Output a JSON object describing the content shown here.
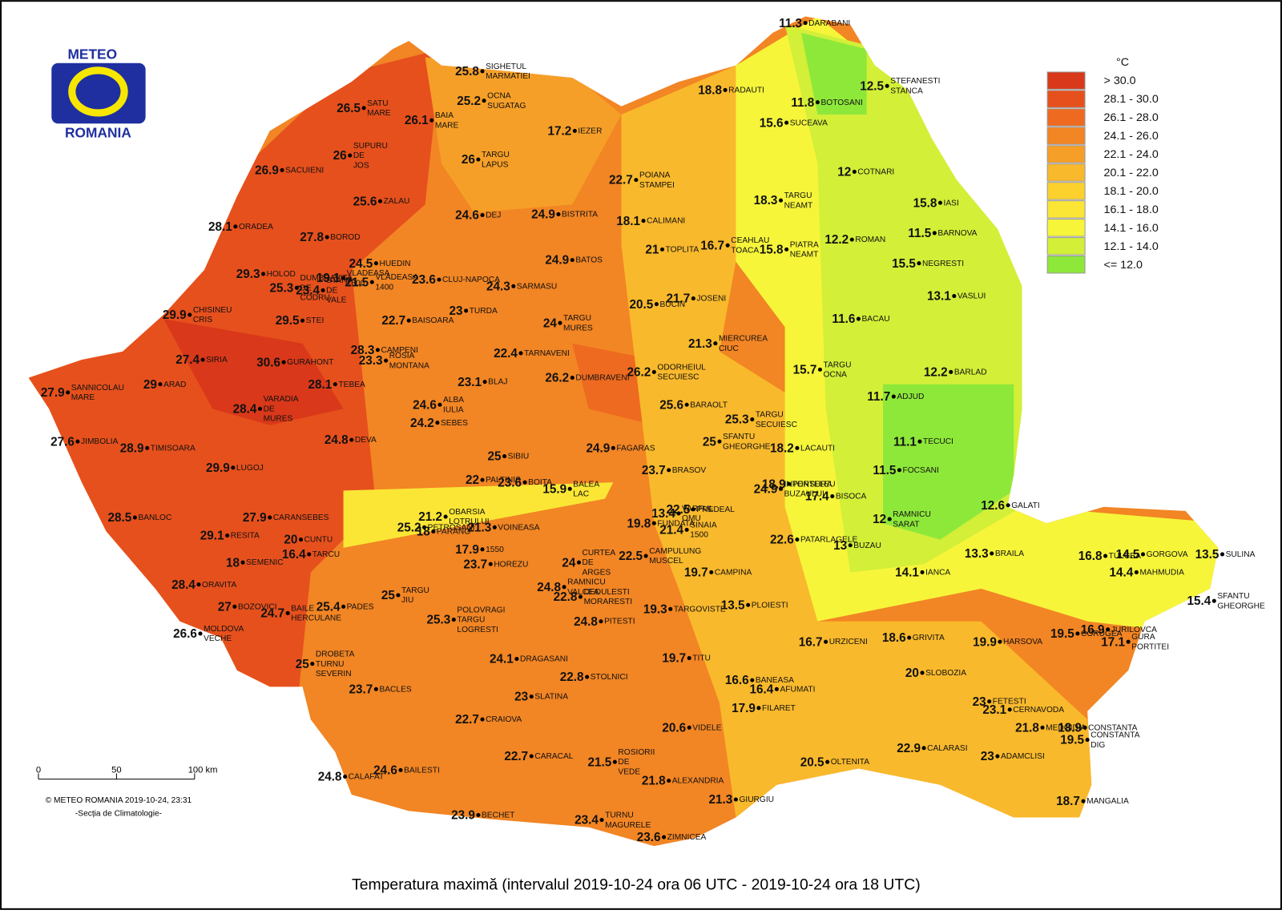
{
  "header": {
    "logo_top": "METEO",
    "logo_bottom": "ROMANIA"
  },
  "legend": {
    "title": "°C",
    "items": [
      {
        "label": "> 30.0",
        "color": "#d9381a"
      },
      {
        "label": "28.1 - 30.0",
        "color": "#e6501d"
      },
      {
        "label": "26.1 - 28.0",
        "color": "#ee6a20"
      },
      {
        "label": "24.1 - 26.0",
        "color": "#f28524"
      },
      {
        "label": "22.1 - 24.0",
        "color": "#f69f28"
      },
      {
        "label": "20.1 - 22.0",
        "color": "#f9b92c"
      },
      {
        "label": "18.1 - 20.0",
        "color": "#fcd12e"
      },
      {
        "label": "16.1 - 18.0",
        "color": "#fbe635"
      },
      {
        "label": "14.1 - 16.0",
        "color": "#f6f53a"
      },
      {
        "label": "12.1 - 14.0",
        "color": "#d3ef38"
      },
      {
        "label": "<= 12.0",
        "color": "#8ee83a"
      }
    ]
  },
  "scale_bar": {
    "labels": [
      "0",
      "50",
      "100 km"
    ]
  },
  "credit": [
    "© METEO ROMANIA 2019-10-24, 23:31",
    "-Secția de Climatologie-"
  ],
  "caption": "Temperatura maximă (intervalul 2019-10-24 ora 06 UTC - 2019-10-24 ora 18 UTC)",
  "stations": [
    {
      "name": [
        "DARABANI"
      ],
      "value": 11.3
    },
    {
      "name": [
        "STEFANESTI",
        "STANCA"
      ],
      "value": 12.5
    },
    {
      "name": [
        "RADAUTI"
      ],
      "value": 18.8
    },
    {
      "name": [
        "BOTOSANI"
      ],
      "value": 11.8
    },
    {
      "name": [
        "SUCEAVA"
      ],
      "value": 15.6
    },
    {
      "name": [
        "COTNARI"
      ],
      "value": 12
    },
    {
      "name": [
        "IASI"
      ],
      "value": 15.8
    },
    {
      "name": [
        "BARNOVA"
      ],
      "value": 11.5
    },
    {
      "name": [
        "ROMAN"
      ],
      "value": 12.2
    },
    {
      "name": [
        "NEGRESTI"
      ],
      "value": 15.5
    },
    {
      "name": [
        "VASLUI"
      ],
      "value": 13.1
    },
    {
      "name": [
        "BACAU"
      ],
      "value": 11.6
    },
    {
      "name": [
        "BARLAD"
      ],
      "value": 12.2
    },
    {
      "name": [
        "ADJUD"
      ],
      "value": 11.7
    },
    {
      "name": [
        "TECUCI"
      ],
      "value": 11.1
    },
    {
      "name": [
        "FOCSANI"
      ],
      "value": 11.5
    },
    {
      "name": [
        "GALATI"
      ],
      "value": 12.6
    },
    {
      "name": [
        "RAMNICU",
        "SARAT"
      ],
      "value": 12
    },
    {
      "name": [
        "BRAILA"
      ],
      "value": 13.3
    },
    {
      "name": [
        "IANCA"
      ],
      "value": 14.1
    },
    {
      "name": [
        "BUZAU"
      ],
      "value": 13
    },
    {
      "name": [
        "TULCEA"
      ],
      "value": 16.8
    },
    {
      "name": [
        "GORGOVA"
      ],
      "value": 14.5
    },
    {
      "name": [
        "MAHMUDIA"
      ],
      "value": 14.4
    },
    {
      "name": [
        "SULINA"
      ],
      "value": 13.5
    },
    {
      "name": [
        "SFANTU",
        "GHEORGHE"
      ],
      "value": 15.4
    },
    {
      "name": [
        "JURILOVCA"
      ],
      "value": 16.9
    },
    {
      "name": [
        "GURA",
        "PORTITEI"
      ],
      "value": 17.1
    },
    {
      "name": [
        "CORUGEA"
      ],
      "value": 19.5
    },
    {
      "name": [
        "HARSOVA"
      ],
      "value": 19.9
    },
    {
      "name": [
        "GRIVITA"
      ],
      "value": 18.6
    },
    {
      "name": [
        "URZICENI"
      ],
      "value": 16.7
    },
    {
      "name": [
        "SLOBOZIA"
      ],
      "value": 20
    },
    {
      "name": [
        "FETESTI"
      ],
      "value": 23
    },
    {
      "name": [
        "CERNAVODA"
      ],
      "value": 23.1
    },
    {
      "name": [
        "MEDGIDIA"
      ],
      "value": 21.8
    },
    {
      "name": [
        "CONSTANTA"
      ],
      "value": 18.9
    },
    {
      "name": [
        "CONSTANTA",
        "DIG"
      ],
      "value": 19.5
    },
    {
      "name": [
        "CALARASI"
      ],
      "value": 22.9
    },
    {
      "name": [
        "ADAMCLISI"
      ],
      "value": 23
    },
    {
      "name": [
        "MANGALIA"
      ],
      "value": 18.7
    },
    {
      "name": [
        "OLTENITA"
      ],
      "value": 20.5
    },
    {
      "name": [
        "GIURGIU"
      ],
      "value": 21.3
    },
    {
      "name": [
        "ZIMNICEA"
      ],
      "value": 23.6
    },
    {
      "name": [
        "TURNU",
        "MAGURELE"
      ],
      "value": 23.4
    },
    {
      "name": [
        "ALEXANDRIA"
      ],
      "value": 21.8
    },
    {
      "name": [
        "ROSIORII",
        "DE",
        "VEDE"
      ],
      "value": 21.5
    },
    {
      "name": [
        "VIDELE"
      ],
      "value": 20.6
    },
    {
      "name": [
        "FILARET"
      ],
      "value": 17.9
    },
    {
      "name": [
        "BANEASA"
      ],
      "value": 16.6
    },
    {
      "name": [
        "AFUMATI"
      ],
      "value": 16.4
    },
    {
      "name": [
        "TITU"
      ],
      "value": 19.7
    },
    {
      "name": [
        "TARGOVISTE"
      ],
      "value": 19.3
    },
    {
      "name": [
        "PLOIESTI"
      ],
      "value": 13.5
    },
    {
      "name": [
        "CAMPINA"
      ],
      "value": 19.7
    },
    {
      "name": [
        "CAMPULUNG",
        "MUSCEL"
      ],
      "value": 22.5
    },
    {
      "name": [
        "SINAIA",
        "1500"
      ],
      "value": 21.4
    },
    {
      "name": [
        "FUNDATA"
      ],
      "value": 19.8
    },
    {
      "name": [
        "VARFUL",
        "OMU"
      ],
      "value": 13.4
    },
    {
      "name": [
        "PREDEAL"
      ],
      "value": 22.5
    },
    {
      "name": [
        "PATARLAGELE"
      ],
      "value": 22.6
    },
    {
      "name": [
        "BISOCA"
      ],
      "value": 17.4
    },
    {
      "name": [
        "PENTELEU"
      ],
      "value": 18.9
    },
    {
      "name": [
        "INTORSURA",
        "BUZAULUI"
      ],
      "value": 24.9
    },
    {
      "name": [
        "BRASOV"
      ],
      "value": 23.7
    },
    {
      "name": [
        "LACAUTI"
      ],
      "value": 18.2
    },
    {
      "name": [
        "TARGU",
        "SECUIESC"
      ],
      "value": 25.3
    },
    {
      "name": [
        "SFANTU",
        "GHEORGHE"
      ],
      "value": 25
    },
    {
      "name": [
        "BARAOLT"
      ],
      "value": 25.6
    },
    {
      "name": [
        "ODORHEIUL",
        "SECUIESC"
      ],
      "value": 26.2
    },
    {
      "name": [
        "MIERCUREA",
        "CIUC"
      ],
      "value": 21.3
    },
    {
      "name": [
        "TARGU",
        "OCNA"
      ],
      "value": 15.7
    },
    {
      "name": [
        "BUCIN"
      ],
      "value": 20.5
    },
    {
      "name": [
        "JOSENI"
      ],
      "value": 21.7
    },
    {
      "name": [
        "TOPLITA"
      ],
      "value": 21
    },
    {
      "name": [
        "CEAHLAU",
        "TOACA"
      ],
      "value": 16.7
    },
    {
      "name": [
        "PIATRA",
        "NEAMT"
      ],
      "value": 15.8
    },
    {
      "name": [
        "TARGU",
        "NEAMT"
      ],
      "value": 18.3
    },
    {
      "name": [
        "CALIMANI"
      ],
      "value": 18.1
    },
    {
      "name": [
        "POIANA",
        "STAMPEI"
      ],
      "value": 22.7
    },
    {
      "name": [
        "IEZER"
      ],
      "value": 17.2
    },
    {
      "name": [
        "BISTRITA"
      ],
      "value": 24.9
    },
    {
      "name": [
        "BATOS"
      ],
      "value": 24.9
    },
    {
      "name": [
        "DEJ"
      ],
      "value": 24.6
    },
    {
      "name": [
        "TARGU",
        "LAPUS"
      ],
      "value": 26
    },
    {
      "name": [
        "OCNA",
        "SUGATAG"
      ],
      "value": 25.2
    },
    {
      "name": [
        "SIGHETUL",
        "MARMATIEI"
      ],
      "value": 25.8
    },
    {
      "name": [
        "BAIA",
        "MARE"
      ],
      "value": 26.1
    },
    {
      "name": [
        "SATU",
        "MARE"
      ],
      "value": 26.5
    },
    {
      "name": [
        "SUPURU",
        "DE",
        "JOS"
      ],
      "value": 26
    },
    {
      "name": [
        "SACUIENI"
      ],
      "value": 26.9
    },
    {
      "name": [
        "ZALAU"
      ],
      "value": 25.6
    },
    {
      "name": [
        "ORADEA"
      ],
      "value": 28.1
    },
    {
      "name": [
        "BOROD"
      ],
      "value": 27.8
    },
    {
      "name": [
        "HUEDIN"
      ],
      "value": 24.5
    },
    {
      "name": [
        "HOLOD"
      ],
      "value": 29.3
    },
    {
      "name": [
        "VLADEASA",
        "1800"
      ],
      "value": 19.1
    },
    {
      "name": [
        "VLADEASA",
        "1400"
      ],
      "value": 21.5
    },
    {
      "name": [
        "CLUJ-NAPOCA"
      ],
      "value": 23.6
    },
    {
      "name": [
        "SARMASU"
      ],
      "value": 24.3
    },
    {
      "name": [
        "DUMBRAVITA",
        "DE",
        "CODRU"
      ],
      "value": 25.3
    },
    {
      "name": [
        "STANA",
        "DE",
        "VALE"
      ],
      "value": 23.4
    },
    {
      "name": [
        "CHISINEU",
        "CRIS"
      ],
      "value": 29.9
    },
    {
      "name": [
        "STEI"
      ],
      "value": 29.5
    },
    {
      "name": [
        "BAISOARA"
      ],
      "value": 22.7
    },
    {
      "name": [
        "TURDA"
      ],
      "value": 23
    },
    {
      "name": [
        "TARGU",
        "MURES"
      ],
      "value": 24
    },
    {
      "name": [
        "CAMPENI"
      ],
      "value": 28.3
    },
    {
      "name": [
        "ROSIA",
        "MONTANA"
      ],
      "value": 23.3
    },
    {
      "name": [
        "TARNAVENI"
      ],
      "value": 22.4
    },
    {
      "name": [
        "SIRIA"
      ],
      "value": 27.4
    },
    {
      "name": [
        "GURAHONT"
      ],
      "value": 30.6
    },
    {
      "name": [
        "SANNICOLAU",
        "MARE"
      ],
      "value": 27.9
    },
    {
      "name": [
        "ARAD"
      ],
      "value": 29
    },
    {
      "name": [
        "TEBEA"
      ],
      "value": 28.1
    },
    {
      "name": [
        "DUMBRAVENI"
      ],
      "value": 26.2
    },
    {
      "name": [
        "BLAJ"
      ],
      "value": 23.1
    },
    {
      "name": [
        "VARADIA",
        "DE",
        "MURES"
      ],
      "value": 28.4
    },
    {
      "name": [
        "ALBA",
        "IULIA"
      ],
      "value": 24.6
    },
    {
      "name": [
        "SEBES"
      ],
      "value": 24.2
    },
    {
      "name": [
        "DEVA"
      ],
      "value": 24.8
    },
    {
      "name": [
        "JIMBOLIA"
      ],
      "value": 27.6
    },
    {
      "name": [
        "TIMISOARA"
      ],
      "value": 28.9
    },
    {
      "name": [
        "LUGOJ"
      ],
      "value": 29.9
    },
    {
      "name": [
        "SIBIU"
      ],
      "value": 25
    },
    {
      "name": [
        "FAGARAS"
      ],
      "value": 24.9
    },
    {
      "name": [
        "PALTINIS"
      ],
      "value": 22
    },
    {
      "name": [
        "BOITA"
      ],
      "value": 23.6
    },
    {
      "name": [
        "BALEA",
        "LAC"
      ],
      "value": 15.9
    },
    {
      "name": [
        "BANLOC"
      ],
      "value": 28.5
    },
    {
      "name": [
        "CARANSEBES"
      ],
      "value": 27.9
    },
    {
      "name": [
        "RESITA"
      ],
      "value": 29.1
    },
    {
      "name": [
        "OBARSIA",
        "LOTRULUI"
      ],
      "value": 21.2
    },
    {
      "name": [
        "PETROSANI"
      ],
      "value": 25.2
    },
    {
      "name": [
        "PARANG"
      ],
      "value": 18
    },
    {
      "name": [
        "VOINEASA"
      ],
      "value": 21.3
    },
    {
      "name": [
        "CUNTU"
      ],
      "value": 20
    },
    {
      "name": [
        "TARCU"
      ],
      "value": 16.4
    },
    {
      "name": [
        "SEMENIC"
      ],
      "value": 18
    },
    {
      "name": [
        "1550"
      ],
      "value": 17.9
    },
    {
      "name": [
        "HOREZU"
      ],
      "value": 23.7
    },
    {
      "name": [
        "CURTEA",
        "DE",
        "ARGES"
      ],
      "value": 24
    },
    {
      "name": [
        "RAMNICU",
        "VALCEA"
      ],
      "value": 24.8
    },
    {
      "name": [
        "DEDULESTI",
        "MORARESTI"
      ],
      "value": 22.8
    },
    {
      "name": [
        "ORAVITA"
      ],
      "value": 28.4
    },
    {
      "name": [
        "BOZOVICI"
      ],
      "value": 27
    },
    {
      "name": [
        "BAILE",
        "HERCULANE"
      ],
      "value": 24.7
    },
    {
      "name": [
        "PADES"
      ],
      "value": 25.4
    },
    {
      "name": [
        "TARGU",
        "JIU"
      ],
      "value": 25
    },
    {
      "name": [
        "POLOVRAGI",
        "TARGU",
        "LOGRESTI"
      ],
      "value": 25.3
    },
    {
      "name": [
        "MOLDOVA",
        "VECHE"
      ],
      "value": 26.6
    },
    {
      "name": [
        "PITESTI"
      ],
      "value": 24.8
    },
    {
      "name": [
        "DROBETA",
        "TURNU",
        "SEVERIN"
      ],
      "value": 25
    },
    {
      "name": [
        "DRAGASANI"
      ],
      "value": 24.1
    },
    {
      "name": [
        "STOLNICI"
      ],
      "value": 22.8
    },
    {
      "name": [
        "BACLES"
      ],
      "value": 23.7
    },
    {
      "name": [
        "SLATINA"
      ],
      "value": 23
    },
    {
      "name": [
        "CRAIOVA"
      ],
      "value": 22.7
    },
    {
      "name": [
        "CARACAL"
      ],
      "value": 22.7
    },
    {
      "name": [
        "CALAFAT"
      ],
      "value": 24.8
    },
    {
      "name": [
        "BAILESTI"
      ],
      "value": 24.6
    },
    {
      "name": [
        "BECHET"
      ],
      "value": 23.9
    }
  ]
}
